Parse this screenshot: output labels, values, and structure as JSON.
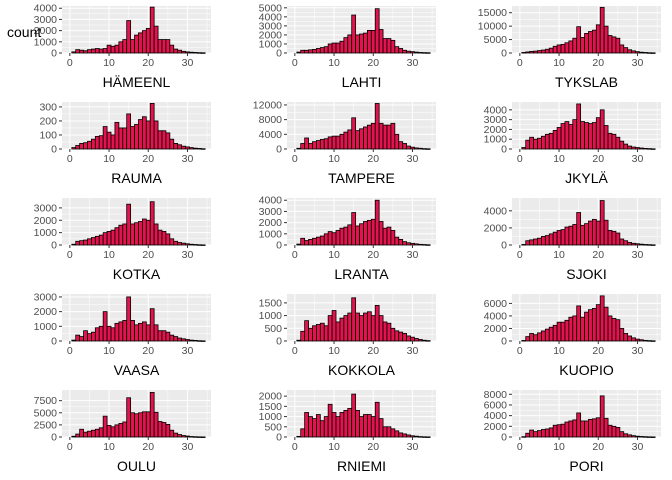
{
  "figure": {
    "y_axis_title": "count",
    "background_color": "#ffffff",
    "panel_color": "#ebebeb",
    "grid_color": "#ffffff",
    "tick_text_color": "#4d4d4d",
    "bar_fill": "#e3134d",
    "bar_outline": "#000000",
    "columns": 3,
    "rows": 5
  },
  "chart_data": [
    {
      "type": "bar",
      "xlabel": "HÄMEENL",
      "ylabel": "count",
      "xlim": [
        -2,
        36
      ],
      "ylim": [
        0,
        4200
      ],
      "xticks": [
        0,
        10,
        20,
        30
      ],
      "yticks": [
        0,
        1000,
        2000,
        3000,
        4000
      ],
      "grid": true,
      "legend": "none",
      "x": [
        1,
        2,
        3,
        4,
        5,
        6,
        7,
        8,
        9,
        10,
        11,
        12,
        13,
        14,
        15,
        16,
        17,
        18,
        19,
        20,
        21,
        22,
        23,
        24,
        25,
        26,
        27,
        28,
        29,
        30,
        31,
        32,
        33,
        34
      ],
      "values": [
        100,
        300,
        250,
        200,
        300,
        350,
        400,
        350,
        400,
        700,
        600,
        700,
        1000,
        1200,
        2900,
        1200,
        1600,
        1800,
        2000,
        2200,
        4100,
        2400,
        1200,
        1200,
        1200,
        700,
        350,
        250,
        150,
        100,
        70,
        50,
        30,
        20
      ]
    },
    {
      "type": "bar",
      "xlabel": "LAHTI",
      "ylabel": "count",
      "xlim": [
        -2,
        36
      ],
      "ylim": [
        0,
        5200
      ],
      "xticks": [
        0,
        10,
        20,
        30
      ],
      "yticks": [
        0,
        1000,
        2000,
        3000,
        4000,
        5000
      ],
      "grid": true,
      "legend": "none",
      "x": [
        1,
        2,
        3,
        4,
        5,
        6,
        7,
        8,
        9,
        10,
        11,
        12,
        13,
        14,
        15,
        16,
        17,
        18,
        19,
        20,
        21,
        22,
        23,
        24,
        25,
        26,
        27,
        28,
        29,
        30,
        31,
        32,
        33,
        34
      ],
      "values": [
        100,
        300,
        300,
        350,
        400,
        500,
        600,
        700,
        1000,
        1100,
        1100,
        1300,
        1700,
        2000,
        4200,
        2000,
        2100,
        2200,
        2500,
        2500,
        4900,
        2600,
        1600,
        1600,
        1400,
        700,
        500,
        300,
        200,
        150,
        100,
        60,
        40,
        30
      ]
    },
    {
      "type": "bar",
      "xlabel": "TYKSLAB",
      "ylabel": "count",
      "xlim": [
        -2,
        36
      ],
      "ylim": [
        0,
        17500
      ],
      "xticks": [
        0,
        10,
        20,
        30
      ],
      "yticks": [
        0,
        5000,
        10000,
        15000
      ],
      "grid": true,
      "legend": "none",
      "x": [
        1,
        2,
        3,
        4,
        5,
        6,
        7,
        8,
        9,
        10,
        11,
        12,
        13,
        14,
        15,
        16,
        17,
        18,
        19,
        20,
        21,
        22,
        23,
        24,
        25,
        26,
        27,
        28,
        29,
        30,
        31,
        32,
        33,
        34
      ],
      "values": [
        200,
        400,
        600,
        700,
        900,
        1100,
        1400,
        1800,
        2500,
        3000,
        3200,
        3800,
        4500,
        5500,
        9800,
        5800,
        7300,
        8000,
        8500,
        10500,
        17000,
        10000,
        6500,
        6000,
        5500,
        3000,
        2000,
        1200,
        800,
        500,
        300,
        200,
        100,
        60
      ]
    },
    {
      "type": "bar",
      "xlabel": "RAUMA",
      "ylabel": "count",
      "xlim": [
        -2,
        36
      ],
      "ylim": [
        0,
        335
      ],
      "xticks": [
        0,
        10,
        20,
        30
      ],
      "yticks": [
        0,
        100,
        200,
        300
      ],
      "grid": true,
      "legend": "none",
      "x": [
        1,
        2,
        3,
        4,
        5,
        6,
        7,
        8,
        9,
        10,
        11,
        12,
        13,
        14,
        15,
        16,
        17,
        18,
        19,
        20,
        21,
        22,
        23,
        24,
        25,
        26,
        27,
        28,
        29,
        30,
        31,
        32,
        33,
        34
      ],
      "values": [
        10,
        25,
        40,
        45,
        55,
        70,
        90,
        95,
        160,
        120,
        100,
        190,
        150,
        150,
        250,
        160,
        175,
        210,
        230,
        200,
        325,
        200,
        130,
        130,
        115,
        70,
        40,
        30,
        20,
        15,
        10,
        6,
        4,
        2
      ]
    },
    {
      "type": "bar",
      "xlabel": "TAMPERE",
      "ylabel": "count",
      "xlim": [
        -2,
        36
      ],
      "ylim": [
        0,
        12800
      ],
      "xticks": [
        0,
        10,
        20,
        30
      ],
      "yticks": [
        0,
        4000,
        8000,
        12000
      ],
      "grid": true,
      "legend": "none",
      "x": [
        1,
        2,
        3,
        4,
        5,
        6,
        7,
        8,
        9,
        10,
        11,
        12,
        13,
        14,
        15,
        16,
        17,
        18,
        19,
        20,
        21,
        22,
        23,
        24,
        25,
        26,
        27,
        28,
        29,
        30,
        31,
        32,
        33,
        34
      ],
      "values": [
        200,
        1500,
        3000,
        1500,
        2000,
        2300,
        2600,
        2800,
        3300,
        3500,
        3500,
        4000,
        4600,
        5200,
        8500,
        5000,
        5500,
        6000,
        6500,
        7000,
        12400,
        7000,
        6500,
        6500,
        7000,
        4000,
        2000,
        1500,
        800,
        500,
        300,
        200,
        100,
        60
      ]
    },
    {
      "type": "bar",
      "xlabel": "JKYLÄ",
      "ylabel": "count",
      "xlim": [
        -2,
        36
      ],
      "ylim": [
        0,
        4800
      ],
      "xticks": [
        0,
        10,
        20,
        30
      ],
      "yticks": [
        0,
        1000,
        2000,
        3000,
        4000
      ],
      "grid": true,
      "legend": "none",
      "x": [
        1,
        2,
        3,
        4,
        5,
        6,
        7,
        8,
        9,
        10,
        11,
        12,
        13,
        14,
        15,
        16,
        17,
        18,
        19,
        20,
        21,
        22,
        23,
        24,
        25,
        26,
        27,
        28,
        29,
        30,
        31,
        32,
        33,
        34
      ],
      "values": [
        150,
        900,
        1200,
        1000,
        1100,
        1300,
        1500,
        1600,
        1900,
        2200,
        2600,
        2800,
        2500,
        3000,
        4600,
        2800,
        2700,
        2600,
        2700,
        3200,
        4000,
        2400,
        1600,
        1500,
        1200,
        800,
        500,
        300,
        200,
        150,
        100,
        60,
        40,
        20
      ]
    },
    {
      "type": "bar",
      "xlabel": "KOTKA",
      "ylabel": "count",
      "xlim": [
        -2,
        36
      ],
      "ylim": [
        0,
        3800
      ],
      "xticks": [
        0,
        10,
        20,
        30
      ],
      "yticks": [
        0,
        1000,
        2000,
        3000
      ],
      "grid": true,
      "legend": "none",
      "x": [
        1,
        2,
        3,
        4,
        5,
        6,
        7,
        8,
        9,
        10,
        11,
        12,
        13,
        14,
        15,
        16,
        17,
        18,
        19,
        20,
        21,
        22,
        23,
        24,
        25,
        26,
        27,
        28,
        29,
        30,
        31,
        32,
        33,
        34
      ],
      "values": [
        60,
        300,
        350,
        400,
        500,
        600,
        700,
        800,
        1000,
        1100,
        1200,
        1400,
        1600,
        1700,
        3300,
        1700,
        1800,
        1900,
        2100,
        2000,
        3500,
        1700,
        1200,
        1100,
        900,
        500,
        300,
        200,
        150,
        100,
        60,
        40,
        20,
        10
      ]
    },
    {
      "type": "bar",
      "xlabel": "LRANTA",
      "ylabel": "count",
      "xlim": [
        -2,
        36
      ],
      "ylim": [
        0,
        4200
      ],
      "xticks": [
        0,
        10,
        20,
        30
      ],
      "yticks": [
        0,
        1000,
        2000,
        3000,
        4000
      ],
      "grid": true,
      "legend": "none",
      "x": [
        1,
        2,
        3,
        4,
        5,
        6,
        7,
        8,
        9,
        10,
        11,
        12,
        13,
        14,
        15,
        16,
        17,
        18,
        19,
        20,
        21,
        22,
        23,
        24,
        25,
        26,
        27,
        28,
        29,
        30,
        31,
        32,
        33,
        34
      ],
      "values": [
        80,
        600,
        400,
        500,
        600,
        700,
        800,
        1000,
        1200,
        1100,
        1300,
        1500,
        1600,
        1800,
        2900,
        1700,
        1900,
        2100,
        2200,
        2300,
        4000,
        2100,
        1500,
        1600,
        1300,
        700,
        500,
        300,
        200,
        150,
        100,
        60,
        40,
        20
      ]
    },
    {
      "type": "bar",
      "xlabel": "SJOKI",
      "ylabel": "count",
      "xlim": [
        -2,
        36
      ],
      "ylim": [
        0,
        5500
      ],
      "xticks": [
        0,
        10,
        20,
        30
      ],
      "yticks": [
        0,
        2000,
        4000
      ],
      "grid": true,
      "legend": "none",
      "x": [
        1,
        2,
        3,
        4,
        5,
        6,
        7,
        8,
        9,
        10,
        11,
        12,
        13,
        14,
        15,
        16,
        17,
        18,
        19,
        20,
        21,
        22,
        23,
        24,
        25,
        26,
        27,
        28,
        29,
        30,
        31,
        32,
        33,
        34
      ],
      "values": [
        60,
        500,
        600,
        700,
        800,
        1000,
        1100,
        1300,
        1500,
        1700,
        1800,
        2100,
        2200,
        2400,
        3800,
        2300,
        2500,
        2800,
        3000,
        2800,
        5200,
        2900,
        1700,
        1600,
        1400,
        700,
        500,
        300,
        200,
        150,
        100,
        60,
        40,
        20
      ]
    },
    {
      "type": "bar",
      "xlabel": "VAASA",
      "ylabel": "count",
      "xlim": [
        -2,
        36
      ],
      "ylim": [
        0,
        3200
      ],
      "xticks": [
        0,
        10,
        20,
        30
      ],
      "yticks": [
        0,
        1000,
        2000,
        3000
      ],
      "grid": true,
      "legend": "none",
      "x": [
        1,
        2,
        3,
        4,
        5,
        6,
        7,
        8,
        9,
        10,
        11,
        12,
        13,
        14,
        15,
        16,
        17,
        18,
        19,
        20,
        21,
        22,
        23,
        24,
        25,
        26,
        27,
        28,
        29,
        30,
        31,
        32,
        33,
        34
      ],
      "values": [
        60,
        400,
        300,
        700,
        500,
        600,
        900,
        1000,
        2000,
        1000,
        900,
        1200,
        1300,
        1400,
        3000,
        1400,
        1100,
        1200,
        1300,
        1100,
        2200,
        1100,
        700,
        700,
        600,
        400,
        300,
        200,
        150,
        100,
        60,
        40,
        20,
        10
      ]
    },
    {
      "type": "bar",
      "xlabel": "KOKKOLA",
      "ylabel": "count",
      "xlim": [
        -2,
        36
      ],
      "ylim": [
        0,
        1850
      ],
      "xticks": [
        0,
        10,
        20,
        30
      ],
      "yticks": [
        0,
        500,
        1000,
        1500
      ],
      "grid": true,
      "legend": "none",
      "x": [
        1,
        2,
        3,
        4,
        5,
        6,
        7,
        8,
        9,
        10,
        11,
        12,
        13,
        14,
        15,
        16,
        17,
        18,
        19,
        20,
        21,
        22,
        23,
        24,
        25,
        26,
        27,
        28,
        29,
        30,
        31,
        32,
        33,
        34
      ],
      "values": [
        30,
        380,
        800,
        500,
        600,
        650,
        700,
        600,
        1000,
        1200,
        750,
        900,
        1000,
        1100,
        1700,
        1100,
        1000,
        1100,
        1150,
        1000,
        1400,
        1000,
        750,
        700,
        500,
        400,
        350,
        300,
        200,
        150,
        100,
        60,
        30,
        15
      ]
    },
    {
      "type": "bar",
      "xlabel": "KUOPIO",
      "ylabel": "count",
      "xlim": [
        -2,
        36
      ],
      "ylim": [
        0,
        7500
      ],
      "xticks": [
        0,
        10,
        20,
        30
      ],
      "yticks": [
        0,
        2000,
        4000,
        6000
      ],
      "grid": true,
      "legend": "none",
      "x": [
        1,
        2,
        3,
        4,
        5,
        6,
        7,
        8,
        9,
        10,
        11,
        12,
        13,
        14,
        15,
        16,
        17,
        18,
        19,
        20,
        21,
        22,
        23,
        24,
        25,
        26,
        27,
        28,
        29,
        30,
        31,
        32,
        33,
        34
      ],
      "values": [
        80,
        700,
        1200,
        1000,
        1300,
        1600,
        1900,
        2200,
        2500,
        3000,
        3000,
        3300,
        3800,
        4000,
        5600,
        3800,
        4600,
        5000,
        5200,
        5800,
        7200,
        5400,
        4000,
        3600,
        3400,
        2000,
        1200,
        800,
        500,
        300,
        200,
        100,
        60,
        30
      ]
    },
    {
      "type": "bar",
      "xlabel": "OULU",
      "ylabel": "count",
      "xlim": [
        -2,
        36
      ],
      "ylim": [
        0,
        9700
      ],
      "xticks": [
        0,
        10,
        20,
        30
      ],
      "yticks": [
        0,
        2500,
        5000,
        7500
      ],
      "grid": true,
      "legend": "none",
      "x": [
        1,
        2,
        3,
        4,
        5,
        6,
        7,
        8,
        9,
        10,
        11,
        12,
        13,
        14,
        15,
        16,
        17,
        18,
        19,
        20,
        21,
        22,
        23,
        24,
        25,
        26,
        27,
        28,
        29,
        30,
        31,
        32,
        33,
        34
      ],
      "values": [
        150,
        600,
        1600,
        1000,
        1200,
        1400,
        1600,
        1900,
        4300,
        2400,
        2100,
        2500,
        2800,
        3100,
        8100,
        5000,
        4800,
        5000,
        5200,
        5200,
        9200,
        5100,
        3200,
        3000,
        2600,
        1400,
        800,
        500,
        300,
        200,
        100,
        60,
        30,
        15
      ]
    },
    {
      "type": "bar",
      "xlabel": "RNIEMI",
      "ylabel": "count",
      "xlim": [
        -2,
        36
      ],
      "ylim": [
        0,
        2300
      ],
      "xticks": [
        0,
        10,
        20,
        30
      ],
      "yticks": [
        0,
        500,
        1000,
        1500,
        2000
      ],
      "grid": true,
      "legend": "none",
      "x": [
        1,
        2,
        3,
        4,
        5,
        6,
        7,
        8,
        9,
        10,
        11,
        12,
        13,
        14,
        15,
        16,
        17,
        18,
        19,
        20,
        21,
        22,
        23,
        24,
        25,
        26,
        27,
        28,
        29,
        30,
        31,
        32,
        33,
        34
      ],
      "values": [
        30,
        400,
        1200,
        1000,
        900,
        1100,
        800,
        1000,
        1600,
        1200,
        1000,
        1200,
        1300,
        1400,
        2100,
        1300,
        1000,
        1100,
        1100,
        1000,
        1700,
        900,
        500,
        500,
        400,
        300,
        200,
        150,
        100,
        60,
        40,
        20,
        10,
        5
      ]
    },
    {
      "type": "bar",
      "xlabel": "PORI",
      "ylabel": "count",
      "xlim": [
        -2,
        36
      ],
      "ylim": [
        0,
        8800
      ],
      "xticks": [
        0,
        10,
        20,
        30
      ],
      "yticks": [
        0,
        2000,
        4000,
        6000,
        8000
      ],
      "grid": true,
      "legend": "none",
      "x": [
        1,
        2,
        3,
        4,
        5,
        6,
        7,
        8,
        9,
        10,
        11,
        12,
        13,
        14,
        15,
        16,
        17,
        18,
        19,
        20,
        21,
        22,
        23,
        24,
        25,
        26,
        27,
        28,
        29,
        30,
        31,
        32,
        33,
        34
      ],
      "values": [
        60,
        700,
        1300,
        1000,
        1200,
        1400,
        1500,
        1700,
        2200,
        2300,
        2400,
        2800,
        3000,
        3200,
        4500,
        3000,
        3000,
        3300,
        3400,
        3600,
        7700,
        3500,
        2200,
        2000,
        1800,
        1000,
        600,
        400,
        250,
        150,
        100,
        60,
        30,
        15
      ]
    }
  ]
}
